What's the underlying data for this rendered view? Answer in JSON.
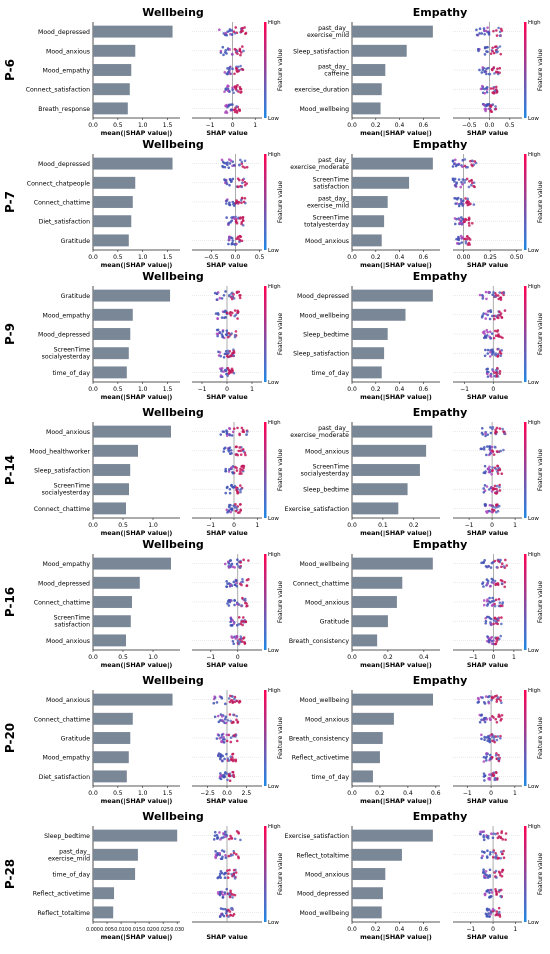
{
  "colorbar": {
    "high": "High",
    "low": "Low",
    "title": "Feature value",
    "low_color": "#1e88e5",
    "high_color": "#ff0052"
  },
  "shap_xlabel": "SHAP value",
  "bar_xlabel": "mean(|SHAP value|)",
  "rows": [
    {
      "participant": "P-6",
      "panels": [
        {
          "title": "Wellbeing",
          "features": [
            "Mood_depressed",
            "Mood_anxious",
            "Mood_empathy",
            "Connect_satisfaction",
            "Breath_response"
          ],
          "values": [
            1.6,
            0.85,
            0.77,
            0.74,
            0.7
          ],
          "xticks": [
            "0.0",
            "0.5",
            "1.0",
            "1.5"
          ],
          "xmax": 1.75,
          "shap_ticks": [
            "−1",
            "0",
            "1"
          ],
          "shap_range": [
            -1.8,
            1.3
          ]
        },
        {
          "title": "Empathy",
          "features": [
            "past_day_\nexercise_mild",
            "Sleep_satisfaction",
            "past_day_\ncaffeine",
            "exercise_duration",
            "Mood_wellbeing"
          ],
          "values": [
            0.68,
            0.46,
            0.28,
            0.25,
            0.24
          ],
          "xticks": [
            "0.0",
            "0.2",
            "0.4",
            "0.6"
          ],
          "xmax": 0.74,
          "shap_ticks": [
            "−0.5",
            "0.0",
            "0.5"
          ],
          "shap_range": [
            -0.9,
            0.8
          ]
        }
      ]
    },
    {
      "participant": "P-7",
      "panels": [
        {
          "title": "Wellbeing",
          "features": [
            "Mood_depressed",
            "Connect_chatpeople",
            "Connect_chattime",
            "Diet_satisfaction",
            "Gratitude"
          ],
          "values": [
            1.6,
            0.85,
            0.8,
            0.77,
            0.72
          ],
          "xticks": [
            "0.0",
            "0.5",
            "1.0",
            "1.5"
          ],
          "xmax": 1.75,
          "shap_ticks": [
            "−0.5",
            "0.0",
            "0.5"
          ],
          "shap_range": [
            -0.9,
            0.55
          ]
        },
        {
          "title": "Empathy",
          "features": [
            "past_day_\nexercise_moderate",
            "ScreenTime\nsatisfaction",
            "past_day_\nexercise_mild",
            "ScreenTime\ntotalyesterday",
            "Mood_anxious"
          ],
          "values": [
            0.68,
            0.48,
            0.3,
            0.27,
            0.25
          ],
          "xticks": [
            "0.0",
            "0.2",
            "0.4",
            "0.6"
          ],
          "xmax": 0.74,
          "shap_ticks": [
            "0.00",
            "0.25",
            "0.50"
          ],
          "shap_range": [
            -0.1,
            0.55
          ]
        }
      ]
    },
    {
      "participant": "P-9",
      "panels": [
        {
          "title": "Wellbeing",
          "features": [
            "Gratitude",
            "Mood_empathy",
            "Mood_depressed",
            "ScreenTime\nsocialyesterday",
            "time_of_day"
          ],
          "values": [
            1.55,
            0.8,
            0.75,
            0.72,
            0.68
          ],
          "xticks": [
            "0.0",
            "0.5",
            "1.0",
            "1.5"
          ],
          "xmax": 1.75,
          "shap_ticks": [
            "−1",
            "0",
            "1"
          ],
          "shap_range": [
            -1.4,
            1.4
          ]
        },
        {
          "title": "Empathy",
          "features": [
            "Mood_depressed",
            "Mood_wellbeing",
            "Sleep_bedtime",
            "Sleep_satisfaction",
            "time_of_day"
          ],
          "values": [
            0.68,
            0.45,
            0.3,
            0.27,
            0.25
          ],
          "xticks": [
            "0.0",
            "0.2",
            "0.4",
            "0.6"
          ],
          "xmax": 0.74,
          "shap_ticks": [
            "−1",
            "0"
          ],
          "shap_range": [
            -1.4,
            1.0
          ]
        }
      ]
    },
    {
      "participant": "P-14",
      "panels": [
        {
          "title": "Wellbeing",
          "features": [
            "Mood_anxious",
            "Mood_healthworker",
            "Sleep_satisfaction",
            "ScreenTime\nsocialyesterday",
            "Connect_chattime"
          ],
          "values": [
            1.3,
            0.75,
            0.62,
            0.6,
            0.55
          ],
          "xticks": [
            "0.0",
            "0.5",
            "1.0"
          ],
          "xmax": 1.45,
          "shap_ticks": [
            "−1",
            "0",
            "1"
          ],
          "shap_range": [
            -1.8,
            1.2
          ]
        },
        {
          "title": "Empathy",
          "features": [
            "past_day_\nexercise_moderate",
            "Mood_anxious",
            "ScreenTime\nsocialyesterday",
            "Sleep_bedtime",
            "Exercise_satisfaction"
          ],
          "values": [
            0.26,
            0.24,
            0.22,
            0.18,
            0.15
          ],
          "xticks": [
            "0.0",
            "0.1",
            "0.2"
          ],
          "xmax": 0.285,
          "shap_ticks": [
            "−1",
            "0",
            "1"
          ],
          "shap_range": [
            -1.7,
            1.3
          ]
        }
      ]
    },
    {
      "participant": "P-16",
      "panels": [
        {
          "title": "Wellbeing",
          "features": [
            "Mood_empathy",
            "Mood_depressed",
            "Connect_chattime",
            "ScreenTime\nsatisfaction",
            "Mood_anxious"
          ],
          "values": [
            1.3,
            0.78,
            0.65,
            0.63,
            0.55
          ],
          "xticks": [
            "0.0",
            "0.5",
            "1.0"
          ],
          "xmax": 1.45,
          "shap_ticks": [
            "−1",
            "0"
          ],
          "shap_range": [
            -1.7,
            0.9
          ]
        },
        {
          "title": "Empathy",
          "features": [
            "Mood_wellbeing",
            "Connect_chattime",
            "Mood_anxious",
            "Gratitude",
            "Breath_consistency"
          ],
          "values": [
            0.45,
            0.28,
            0.25,
            0.2,
            0.14
          ],
          "xticks": [
            "0.0",
            "0.2",
            "0.4"
          ],
          "xmax": 0.49,
          "shap_ticks": [
            "−1",
            "0",
            "1"
          ],
          "shap_range": [
            -2.0,
            1.4
          ]
        }
      ]
    },
    {
      "participant": "P-20",
      "panels": [
        {
          "title": "Wellbeing",
          "features": [
            "Mood_anxious",
            "Connect_chattime",
            "Gratitude",
            "Mood_empathy",
            "Diet_satisfaction"
          ],
          "values": [
            1.6,
            0.8,
            0.75,
            0.72,
            0.68
          ],
          "xticks": [
            "0.0",
            "0.5",
            "1.0",
            "1.5"
          ],
          "xmax": 1.75,
          "shap_ticks": [
            "−2.5",
            "0.0",
            "2.5"
          ],
          "shap_range": [
            -4.5,
            4.5
          ]
        },
        {
          "title": "Empathy",
          "features": [
            "Mood_wellbeing",
            "Mood_anxious",
            "Breath_consistency",
            "Reflect_activetime",
            "time_of_day"
          ],
          "values": [
            0.58,
            0.3,
            0.22,
            0.2,
            0.15
          ],
          "xticks": [
            "0.0",
            "0.2",
            "0.4",
            "0.6"
          ],
          "xmax": 0.63,
          "shap_ticks": [
            "−1",
            "0",
            "1"
          ],
          "shap_range": [
            -1.6,
            1.3
          ]
        }
      ]
    },
    {
      "participant": "P-28",
      "panels": [
        {
          "title": "Wellbeing",
          "features": [
            "Sleep_bedtime",
            "past_day_\nexercise_mild",
            "time_of_day",
            "Reflect_activetime",
            "Reflect_totaltime"
          ],
          "values": [
            0.03,
            0.016,
            0.015,
            0.0075,
            0.0072
          ],
          "xticks": [
            "0.000",
            "0.005",
            "0.010",
            "0.015",
            "0.020",
            "0.025",
            "0.030"
          ],
          "xmax": 0.031,
          "shap_ticks": [],
          "shap_range": [
            -1,
            1
          ]
        },
        {
          "title": "Empathy",
          "features": [
            "Exercise_satisfaction",
            "Reflect_totaltime",
            "Mood_anxious",
            "Mood_depressed",
            "Mood_wellbeing"
          ],
          "values": [
            0.68,
            0.42,
            0.28,
            0.26,
            0.25
          ],
          "xticks": [
            "0.0",
            "0.2",
            "0.4",
            "0.6"
          ],
          "xmax": 0.74,
          "shap_ticks": [
            "−1",
            "0",
            "1"
          ],
          "shap_range": [
            -1.8,
            1.3
          ]
        }
      ]
    }
  ]
}
